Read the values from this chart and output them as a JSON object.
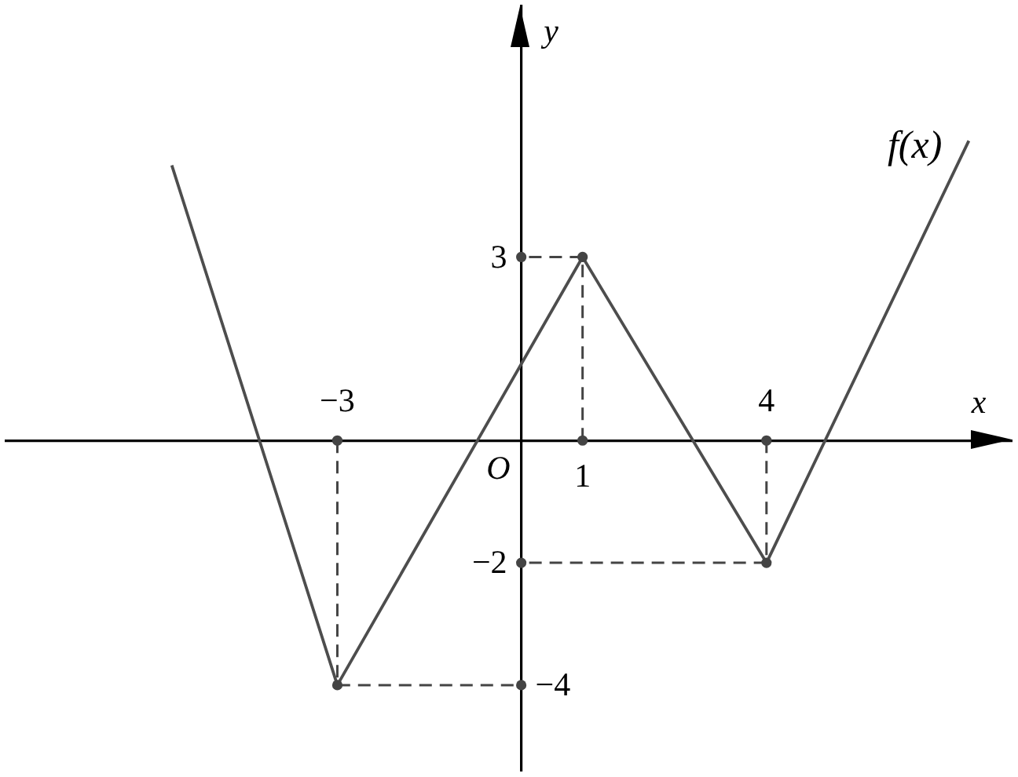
{
  "chart_data": {
    "type": "line",
    "xlabel": "x",
    "ylabel": "y",
    "xlim": [
      -8.4,
      8
    ],
    "ylim": [
      -5.4,
      7.1
    ],
    "xticks": [
      {
        "value": -3,
        "label": "−3"
      },
      4
    ],
    "yticks": [
      3,
      {
        "value": -2,
        "label": "−2"
      }
    ],
    "annotations": [
      "O",
      {
        "text": "1",
        "x": 1,
        "y": 0
      },
      {
        "text": "−4",
        "x": 0,
        "y": -4
      }
    ],
    "series": [
      {
        "name": "f(x)",
        "color": "#4d4d4d",
        "x": [
          -5.7,
          -3,
          1,
          4,
          7.3
        ],
        "values": [
          4.5,
          -4,
          3,
          -2,
          4.9
        ]
      },
      {
        "color": "#444444",
        "x": [
          -3,
          -3,
          0
        ],
        "values": [
          0,
          -4,
          -4
        ],
        "marker": "circle",
        "line_style": "dashed"
      },
      {
        "color": "#444444",
        "x": [
          1,
          1,
          0
        ],
        "values": [
          0,
          3,
          3
        ],
        "marker": "circle",
        "line_style": "dashed"
      },
      {
        "color": "#444444",
        "x": [
          4,
          4,
          0
        ],
        "values": [
          0,
          -2,
          -2
        ],
        "marker": "circle",
        "line_style": "dashed"
      }
    ]
  }
}
